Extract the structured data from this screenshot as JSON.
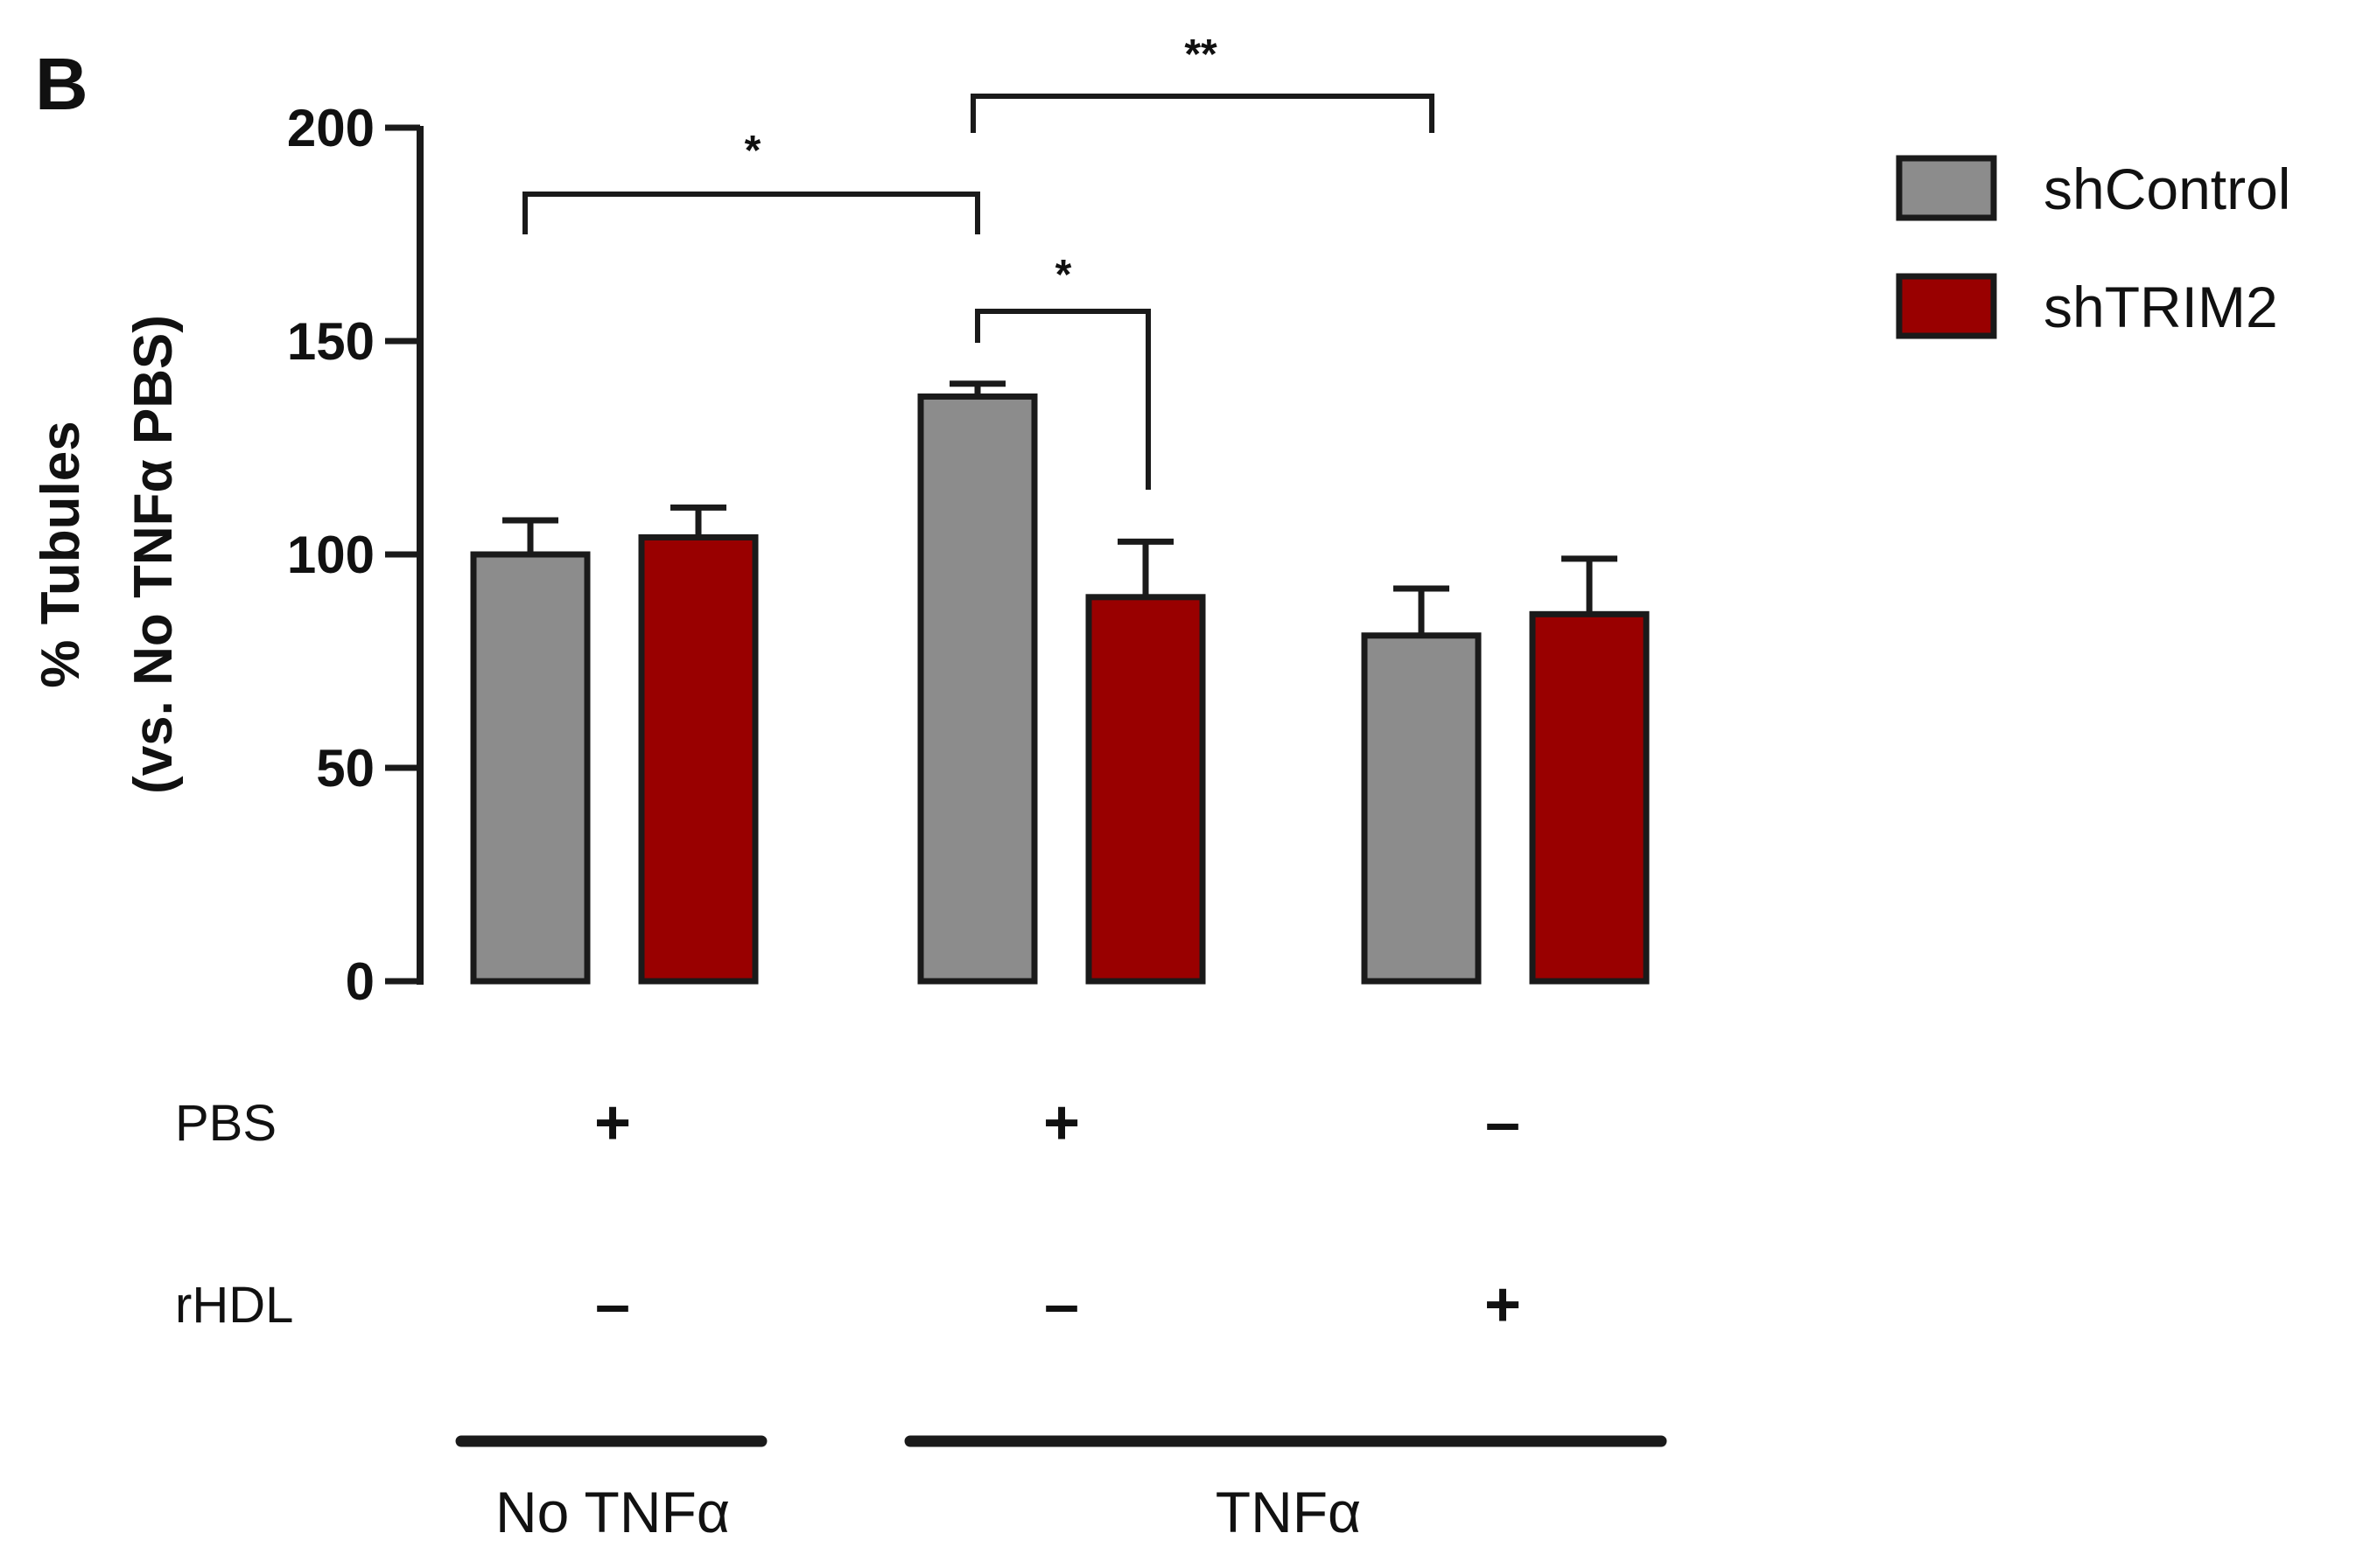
{
  "panel_label": "B",
  "colors": {
    "shControl": "#8c8c8c",
    "shTRIM2": "#990000",
    "outline": "#1a1a1a"
  },
  "chart_data": {
    "type": "bar",
    "title": "",
    "xlabel": "",
    "ylabel_line1": "% Tubules",
    "ylabel_line2": "(vs. No TNFα PBS)",
    "ylim": [
      0,
      200
    ],
    "yticks": [
      0,
      50,
      100,
      150,
      200
    ],
    "ytick_labels": [
      "0",
      "50",
      "100",
      "150",
      "200"
    ],
    "legend_position": "top-right",
    "categories": [
      "No TNFα PBS",
      "TNFα PBS",
      "TNFα rHDL"
    ],
    "series": [
      {
        "name": "shControl",
        "values": [
          100,
          137,
          81
        ],
        "errors": [
          8,
          3,
          11
        ]
      },
      {
        "name": "shTRIM2",
        "values": [
          104,
          90,
          86
        ],
        "errors": [
          7,
          13,
          13
        ]
      }
    ],
    "significance": [
      {
        "label": "*",
        "from": "No TNFα PBS / shControl",
        "to": "TNFα PBS / shControl"
      },
      {
        "label": "**",
        "from": "TNFα PBS / shControl",
        "to": "TNFα rHDL / shControl"
      },
      {
        "label": "*",
        "from": "TNFα PBS / shControl",
        "to": "TNFα PBS / shTRIM2"
      }
    ],
    "conditions": [
      {
        "name": "PBS",
        "symbols": [
          "+",
          "+",
          "–"
        ]
      },
      {
        "name": "rHDL",
        "symbols": [
          "–",
          "–",
          "+"
        ]
      }
    ],
    "groups": [
      {
        "label": "No TNFα",
        "category_span": [
          0,
          0
        ]
      },
      {
        "label": "TNFα",
        "category_span": [
          1,
          2
        ]
      }
    ]
  }
}
